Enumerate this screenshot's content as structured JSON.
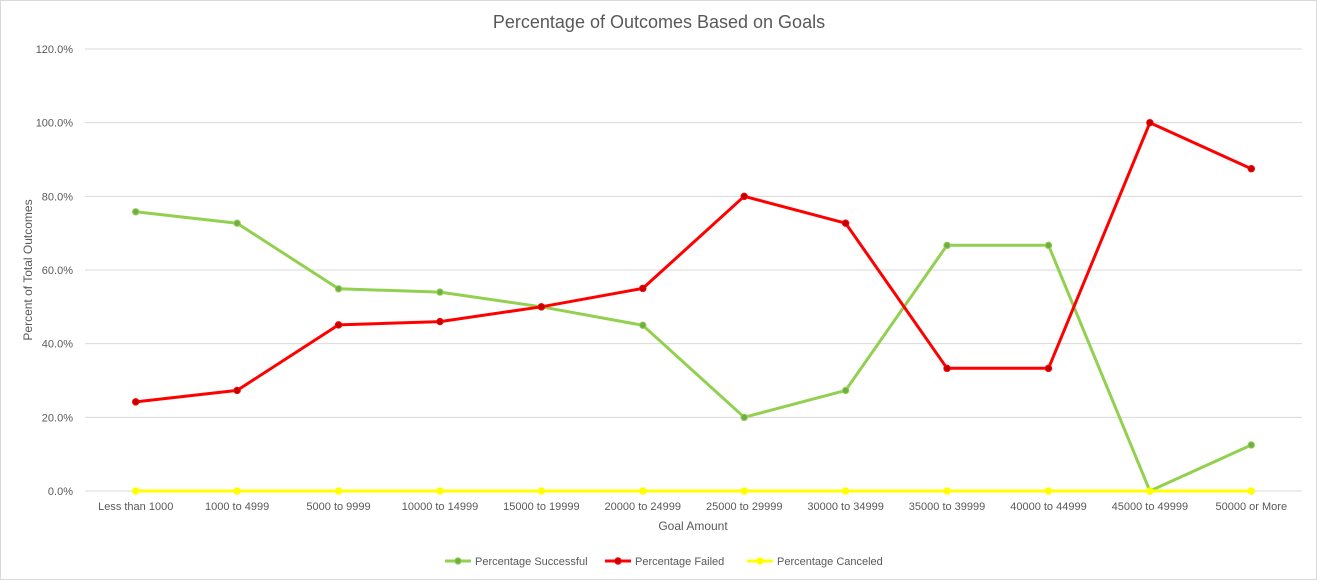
{
  "chart_data": {
    "type": "line",
    "title": "Percentage of Outcomes Based on Goals",
    "xlabel": "Goal Amount",
    "ylabel": "Percent of Total Outcomes",
    "ylim": [
      0,
      120
    ],
    "yticks": [
      "0.0%",
      "20.0%",
      "40.0%",
      "60.0%",
      "80.0%",
      "100.0%",
      "120.0%"
    ],
    "ytick_values": [
      0,
      20,
      40,
      60,
      80,
      100,
      120
    ],
    "grid": true,
    "legend": "bottom",
    "categories": [
      "Less than 1000",
      "1000 to 4999",
      "5000 to 9999",
      "10000 to 14999",
      "15000 to 19999",
      "20000 to 24999",
      "25000 to 29999",
      "30000 to 34999",
      "35000 to 39999",
      "40000 to 44999",
      "45000 to 49999",
      "50000 or More"
    ],
    "series": [
      {
        "name": "Percentage Successful",
        "color": "#92d050",
        "marker": "#70ad47",
        "values": [
          75.8,
          72.7,
          54.9,
          54.0,
          50.0,
          45.0,
          20.0,
          27.3,
          66.7,
          66.7,
          0.0,
          12.5
        ]
      },
      {
        "name": "Percentage Failed",
        "color": "#ff0000",
        "marker": "#c00000",
        "values": [
          24.2,
          27.3,
          45.1,
          46.0,
          50.0,
          55.0,
          80.0,
          72.7,
          33.3,
          33.3,
          100.0,
          87.5
        ]
      },
      {
        "name": "Percentage Canceled",
        "color": "#ffff00",
        "marker": "#ffff00",
        "values": [
          0,
          0,
          0,
          0,
          0,
          0,
          0,
          0,
          0,
          0,
          0,
          0
        ]
      }
    ]
  }
}
